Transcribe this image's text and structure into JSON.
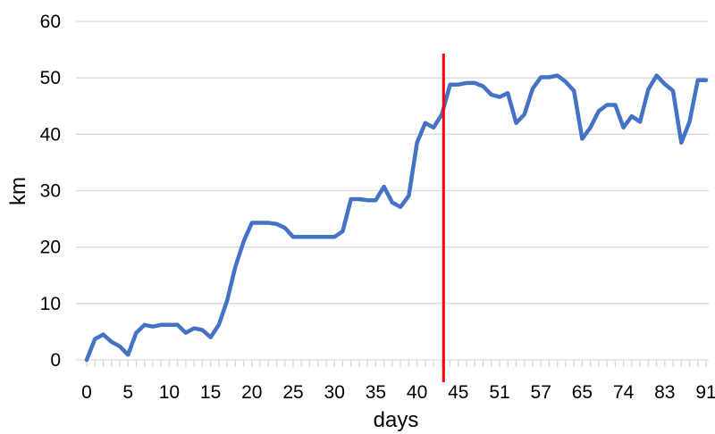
{
  "chart_data": {
    "type": "line",
    "xlabel": "days",
    "ylabel": "km",
    "ylim": [
      0,
      60
    ],
    "yticks": [
      0,
      10,
      20,
      30,
      40,
      50,
      60
    ],
    "grid": "horizontal",
    "legend": "none",
    "x_tick_labels": [
      "0",
      "5",
      "10",
      "15",
      "20",
      "25",
      "30",
      "35",
      "40",
      "45",
      "51",
      "57",
      "65",
      "74",
      "83",
      "91"
    ],
    "series": [
      {
        "color": "#4472c4",
        "values": [
          0,
          3.7,
          4.5,
          3.2,
          2.4,
          0.9,
          4.8,
          6.2,
          5.9,
          6.2,
          6.2,
          6.2,
          4.8,
          5.6,
          5.3,
          4.0,
          6.2,
          10.5,
          16.5,
          21.0,
          24.3,
          24.3,
          24.3,
          24.1,
          23.4,
          21.8,
          21.8,
          21.8,
          21.8,
          21.8,
          21.8,
          22.8,
          28.5,
          28.5,
          28.3,
          28.3,
          30.7,
          27.9,
          27.1,
          29.1,
          38.5,
          42.0,
          41.2,
          43.5,
          48.8,
          48.8,
          49.1,
          49.1,
          48.5,
          47.0,
          46.6,
          47.3,
          42.0,
          43.5,
          48.1,
          50.1,
          50.1,
          50.4,
          49.3,
          47.7,
          39.2,
          41.2,
          44.1,
          45.2,
          45.2,
          41.2,
          43.2,
          42.2,
          47.9,
          50.4,
          48.9,
          47.7,
          38.5,
          42.2,
          49.6,
          49.6
        ]
      }
    ],
    "vertical_marker": {
      "after_index": 43,
      "color": "#ff0000"
    }
  }
}
